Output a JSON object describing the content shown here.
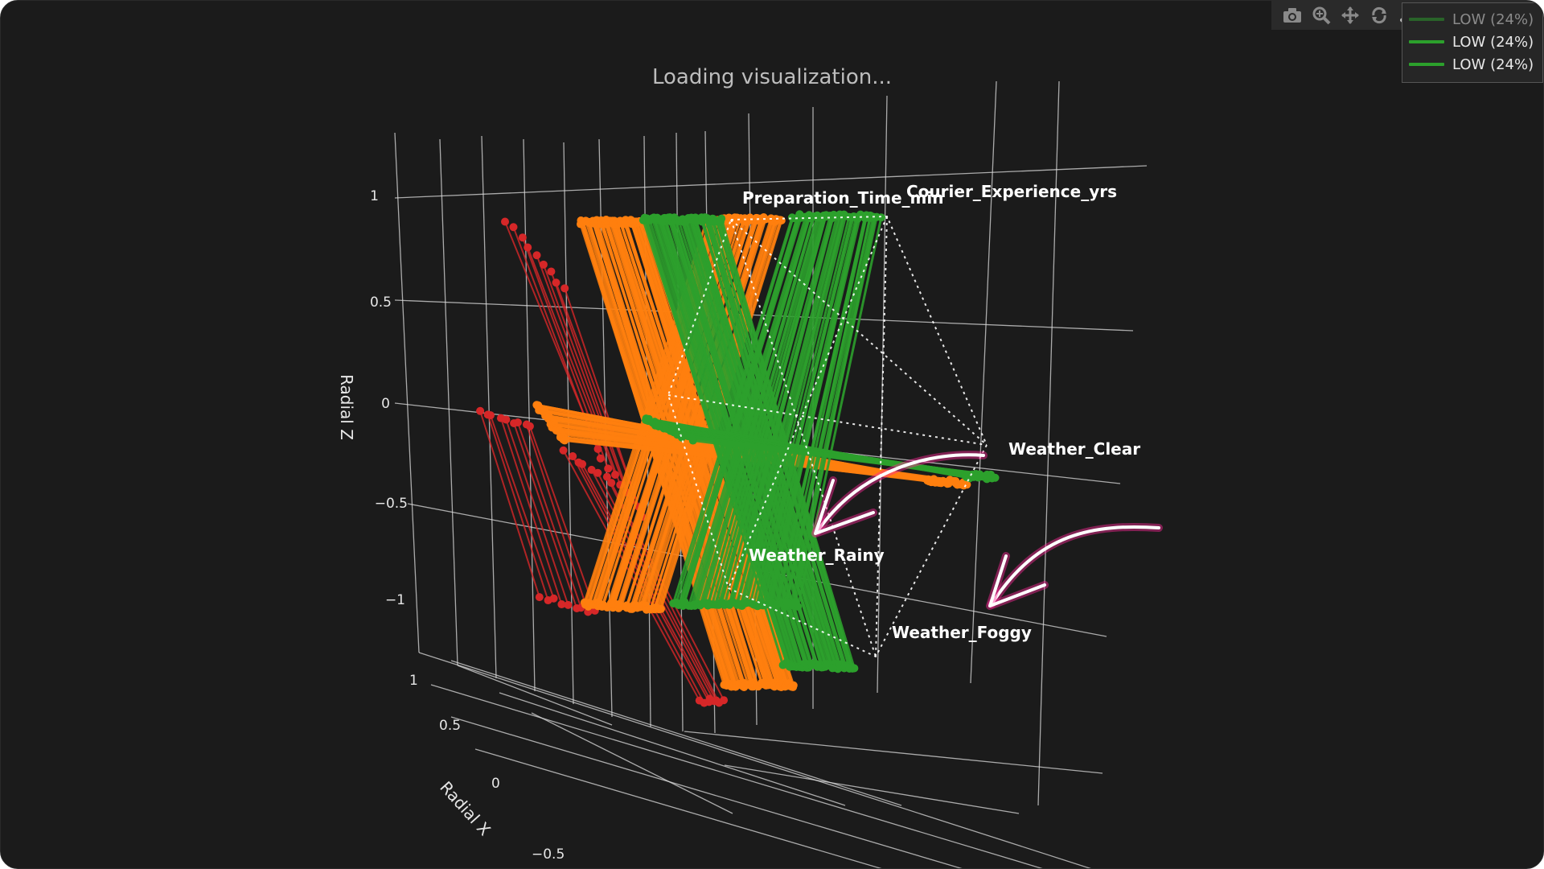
{
  "status": {
    "loading": "Loading visualization..."
  },
  "toolbar": {
    "icons": [
      "camera-icon",
      "zoom-icon",
      "pan-icon",
      "orbit-icon",
      "turntable-icon",
      "reset-icon",
      "hover-icon",
      "plotly-logo-icon"
    ]
  },
  "legend": {
    "items": [
      {
        "label": "LOW (24%)",
        "color": "#2ca02c"
      },
      {
        "label": "LOW (24%)",
        "color": "#2ca02c"
      },
      {
        "label": "LOW (24%)",
        "color": "#2ca02c"
      }
    ]
  },
  "colors": {
    "background": "#1b1b1b",
    "grid": "#dcdcdc",
    "orange": "#ff7f0e",
    "green": "#2ca02c",
    "red": "#d62728",
    "annotation_arrow": "#ff2a9a"
  },
  "chart_data": {
    "type": "scatter3d",
    "title": "",
    "axes": {
      "z": {
        "title": "Radial Z",
        "ticks": [
          "1",
          "0.5",
          "0",
          "−0.5",
          "−1"
        ],
        "range": [
          -1,
          1
        ]
      },
      "x": {
        "title": "Radial X",
        "ticks": [
          "1",
          "0.5",
          "0",
          "−0.5"
        ]
      }
    },
    "grid": true,
    "legend_placement": "top-right",
    "feature_labels": [
      "Preparation_Time_min",
      "Courier_Experience_yrs",
      "Weather_Clear",
      "Weather_Rainy",
      "Weather_Foggy"
    ],
    "series": [
      {
        "color": "#ff7f0e"
      },
      {
        "color": "#2ca02c"
      },
      {
        "color": "#d62728"
      }
    ]
  }
}
